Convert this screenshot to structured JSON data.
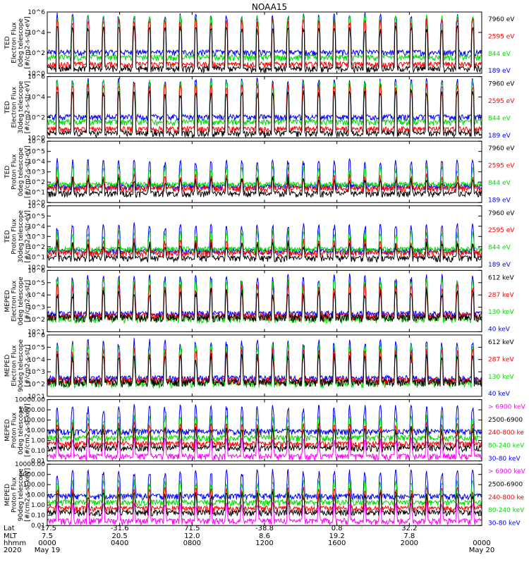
{
  "title": "NOAA15",
  "panels": [
    {
      "id": "ted-e-0",
      "ylabel_lines": [
        "TED",
        "Electron Flux",
        "0deg telescope",
        "[#/cm2-s-str-eV]"
      ],
      "scale": "log",
      "ylim": [
        1,
        1000000
      ],
      "tick_labels": [
        "10^0",
        "10^2",
        "10^4",
        "10^6"
      ],
      "channels": [
        {
          "label": "7960 eV",
          "color": "#000000"
        },
        {
          "label": "2595 eV",
          "color": "#ff0000"
        },
        {
          "label": "844 eV",
          "color": "#00dd00"
        },
        {
          "label": "189 eV",
          "color": "#0000ff"
        }
      ]
    },
    {
      "id": "ted-e-30",
      "ylabel_lines": [
        "TED",
        "Electron Flux",
        "30deg telescope",
        "[#/cm2-s-str-eV]"
      ],
      "scale": "log",
      "ylim": [
        1,
        1000000
      ],
      "tick_labels": [
        "10^0",
        "10^2",
        "10^4",
        "10^6"
      ],
      "channels": [
        {
          "label": "7960 eV",
          "color": "#000000"
        },
        {
          "label": "2595 eV",
          "color": "#ff0000"
        },
        {
          "label": "844 eV",
          "color": "#00dd00"
        },
        {
          "label": "189 eV",
          "color": "#0000ff"
        }
      ]
    },
    {
      "id": "ted-p-0",
      "ylabel_lines": [
        "TED",
        "Proton Flux",
        "0deg telescope",
        "[#/cm2-s-str-eV]"
      ],
      "scale": "log",
      "ylim": [
        1,
        1000000
      ],
      "tick_labels": [
        "10^0",
        "10^1",
        "10^2",
        "10^3",
        "10^4",
        "10^5",
        "10^6"
      ],
      "channels": [
        {
          "label": "7960 eV",
          "color": "#000000"
        },
        {
          "label": "2595 eV",
          "color": "#ff0000"
        },
        {
          "label": "844 eV",
          "color": "#00dd00"
        },
        {
          "label": "189 eV",
          "color": "#0000ff"
        }
      ]
    },
    {
      "id": "ted-p-30",
      "ylabel_lines": [
        "TED",
        "Proton Flux",
        "30deg telescope",
        "[#/cm2-s-str-eV]"
      ],
      "scale": "log",
      "ylim": [
        1,
        1000000
      ],
      "tick_labels": [
        "10^0",
        "10^1",
        "10^2",
        "10^3",
        "10^4",
        "10^5",
        "10^6"
      ],
      "channels": [
        {
          "label": "7960 eV",
          "color": "#000000"
        },
        {
          "label": "2595 eV",
          "color": "#ff0000"
        },
        {
          "label": "844 eV",
          "color": "#00dd00"
        },
        {
          "label": "189 eV",
          "color": "#0000ff"
        }
      ]
    },
    {
      "id": "meped-e-0",
      "ylabel_lines": [
        "MEPED",
        "Electron Flux",
        "0deg telescope",
        "[#/cm2-s-str]"
      ],
      "scale": "log",
      "ylim": [
        10,
        1000000
      ],
      "tick_labels": [
        "10^1",
        "10^2",
        "10^3",
        "10^4",
        "10^5",
        "10^6"
      ],
      "channels": [
        {
          "label": "612 keV",
          "color": "#000000"
        },
        {
          "label": "287 keV",
          "color": "#ff0000"
        },
        {
          "label": "130 keV",
          "color": "#00dd00"
        },
        {
          "label": "40 keV",
          "color": "#0000ff"
        }
      ]
    },
    {
      "id": "meped-e-90",
      "ylabel_lines": [
        "MEPED",
        "Electron Flux",
        "90deg telescope",
        "[#/cm2-s-str]"
      ],
      "scale": "log",
      "ylim": [
        10,
        1000000
      ],
      "tick_labels": [
        "10^1",
        "10^2",
        "10^3",
        "10^4",
        "10^5",
        "10^6"
      ],
      "channels": [
        {
          "label": "612 keV",
          "color": "#000000"
        },
        {
          "label": "287 keV",
          "color": "#ff0000"
        },
        {
          "label": "130 keV",
          "color": "#00dd00"
        },
        {
          "label": "40 keV",
          "color": "#0000ff"
        }
      ]
    },
    {
      "id": "meped-p-0",
      "ylabel_lines": [
        "MEPED",
        "Proton Flux",
        "0deg telescope",
        "[#/cm2-s-sr-keV]"
      ],
      "scale": "log",
      "ylim": [
        0.01,
        10000
      ],
      "tick_labels": [
        "0.01",
        "0.10",
        "1.00",
        "10.00",
        "100.00",
        "1000.00",
        "10000.00"
      ],
      "channels": [
        {
          "label": "> 6900 keV",
          "color": "#ff00ff"
        },
        {
          "label": "2500-6900",
          "color": "#000000"
        },
        {
          "label": "240-800 ke",
          "color": "#ff0000"
        },
        {
          "label": "80-240 keV",
          "color": "#00dd00"
        },
        {
          "label": "30-80 keV",
          "color": "#0000ff"
        }
      ]
    },
    {
      "id": "meped-p-90",
      "ylabel_lines": [
        "MEPED",
        "Proton Flux",
        "90deg telescope",
        "[#/cm2-s-sr-keV]"
      ],
      "scale": "log",
      "ylim": [
        0.01,
        10000
      ],
      "tick_labels": [
        "0.01",
        "0.10",
        "1.00",
        "10.00",
        "100.00",
        "1000.00",
        "10000.00"
      ],
      "channels": [
        {
          "label": "> 6900 keV",
          "color": "#ff00ff"
        },
        {
          "label": "2500-6900",
          "color": "#000000"
        },
        {
          "label": "240-800 ke",
          "color": "#ff0000"
        },
        {
          "label": "80-240 keV",
          "color": "#00dd00"
        },
        {
          "label": "30-80 keV",
          "color": "#0000ff"
        }
      ]
    }
  ],
  "xaxis": {
    "row_labels": [
      "Lat",
      "MLT",
      "hhmm",
      "2020"
    ],
    "ticks": [
      {
        "hour": 0,
        "lat": "-17.5",
        "mlt": "7.5",
        "hhmm": "0000",
        "date": "May 19"
      },
      {
        "hour": 4,
        "lat": "-31.6",
        "mlt": "20.5",
        "hhmm": "0400",
        "date": ""
      },
      {
        "hour": 8,
        "lat": "71.5",
        "mlt": "12.0",
        "hhmm": "0800",
        "date": ""
      },
      {
        "hour": 12,
        "lat": "-38.8",
        "mlt": "8.6",
        "hhmm": "1200",
        "date": ""
      },
      {
        "hour": 16,
        "lat": "0.8",
        "mlt": "19.2",
        "hhmm": "1600",
        "date": ""
      },
      {
        "hour": 20,
        "lat": "32.2",
        "mlt": "7.8",
        "hhmm": "2000",
        "date": ""
      },
      {
        "hour": 24,
        "lat": "",
        "mlt": "",
        "hhmm": "0000",
        "date": "May 20"
      }
    ]
  }
}
